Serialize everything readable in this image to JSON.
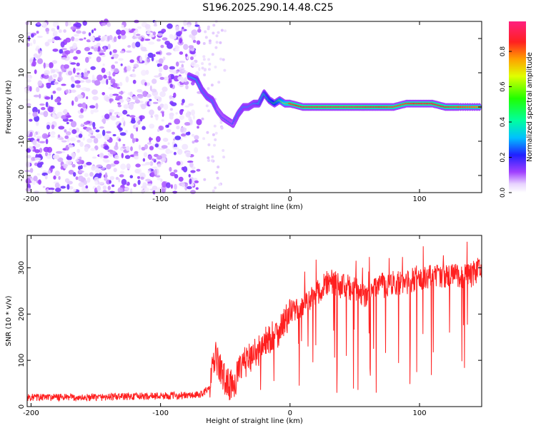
{
  "title": "S196.2025.290.14.48.C25",
  "chart_data": [
    {
      "type": "heatmap",
      "name": "spectrogram",
      "xlabel": "Height of straight line (km)",
      "ylabel": "Frequency (Hz)",
      "xlim": [
        -203,
        148
      ],
      "ylim": [
        -25,
        25
      ],
      "xticks": [
        -200,
        -100,
        0,
        100
      ],
      "xtick_labels": [
        "-200",
        "-100",
        "0",
        "100"
      ],
      "yticks": [
        -20,
        -10,
        0,
        10,
        20
      ],
      "ytick_labels": [
        "-20",
        "-10",
        "0",
        "10",
        "20"
      ],
      "colorbar": {
        "label": "Normalized spectral amplitude",
        "range": [
          0,
          0.97
        ],
        "ticks": [
          0,
          0.2,
          0.4,
          0.6,
          0.8
        ],
        "tick_labels": [
          "0.0",
          "0.2",
          "0.4",
          "0.6",
          "0.8"
        ]
      },
      "signal_track": {
        "x": [
          -78,
          -72,
          -68,
          -64,
          -60,
          -56,
          -52,
          -48,
          -44,
          -40,
          -36,
          -32,
          -28,
          -24,
          -20,
          -16,
          -12,
          -8,
          -4,
          0,
          10,
          20,
          30,
          40,
          50,
          60,
          70,
          80,
          90,
          100,
          110,
          120,
          130,
          148
        ],
        "freq": [
          9,
          8,
          5,
          3,
          2,
          -1,
          -3,
          -4,
          -5,
          -2,
          0,
          0,
          1,
          1,
          4,
          2,
          1,
          2,
          1,
          1,
          0,
          0,
          0,
          0,
          0,
          0,
          0,
          0,
          1,
          1,
          1,
          0,
          0,
          0
        ],
        "amplitude": [
          0.3,
          0.35,
          0.3,
          0.3,
          0.3,
          0.25,
          0.25,
          0.25,
          0.25,
          0.3,
          0.3,
          0.3,
          0.3,
          0.35,
          0.4,
          0.45,
          0.5,
          0.6,
          0.7,
          0.85,
          0.9,
          0.92,
          0.93,
          0.93,
          0.93,
          0.9,
          0.88,
          0.85,
          0.85,
          0.9,
          0.9,
          0.88,
          0.85,
          0.8
        ]
      },
      "noise_region": {
        "x_range": [
          -203,
          -70
        ],
        "amplitude_range": [
          0,
          0.2
        ]
      }
    },
    {
      "type": "line",
      "name": "snr",
      "xlabel": "Height of straight line (km)",
      "ylabel": "SNR (10 * v/v)",
      "xlim": [
        -203,
        148
      ],
      "ylim": [
        0,
        370
      ],
      "xticks": [
        -200,
        -100,
        0,
        100
      ],
      "xtick_labels": [
        "-200",
        "-100",
        "0",
        "100"
      ],
      "yticks": [
        0,
        100,
        200,
        300
      ],
      "ytick_labels": [
        "0",
        "100",
        "200",
        "300"
      ],
      "series": [
        {
          "name": "SNR",
          "color": "#ff2020",
          "x": [
            -203,
            -180,
            -160,
            -140,
            -120,
            -100,
            -80,
            -70,
            -62,
            -58,
            -55,
            -50,
            -45,
            -40,
            -35,
            -30,
            -25,
            -20,
            -15,
            -10,
            -5,
            0,
            10,
            20,
            25,
            30,
            40,
            50,
            55,
            60,
            70,
            80,
            90,
            95,
            100,
            110,
            120,
            130,
            140,
            148
          ],
          "y": [
            20,
            20,
            19,
            21,
            22,
            23,
            24,
            25,
            40,
            110,
            90,
            55,
            45,
            70,
            95,
            110,
            120,
            135,
            150,
            160,
            180,
            200,
            220,
            240,
            260,
            270,
            260,
            255,
            240,
            245,
            260,
            270,
            265,
            275,
            280,
            280,
            285,
            282,
            285,
            300
          ]
        }
      ]
    }
  ]
}
